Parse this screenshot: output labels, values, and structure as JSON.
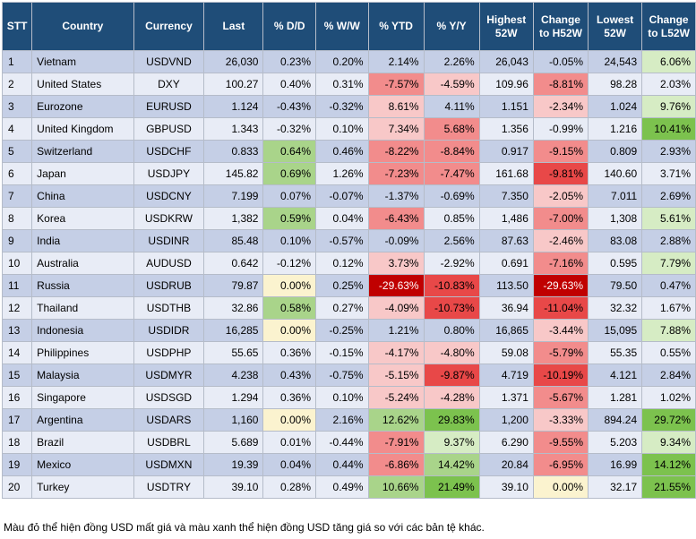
{
  "headers": [
    "STT",
    "Country",
    "Currency",
    "Last",
    "% D/D",
    "% W/W",
    "% YTD",
    "% Y/Y",
    "Highest 52W",
    "Change to H52W",
    "Lowest 52W",
    "Change to L52W"
  ],
  "rows": [
    {
      "stt": "1",
      "country": "Vietnam",
      "currency": "USDVND",
      "last": "26,030",
      "dd": "0.23%",
      "ww": "0.20%",
      "ytd": "2.14%",
      "yy": "2.26%",
      "h52": "26,043",
      "ch52": "-0.05%",
      "l52": "24,543",
      "cl52": "6.06%"
    },
    {
      "stt": "2",
      "country": "United States",
      "currency": "DXY",
      "last": "100.27",
      "dd": "0.40%",
      "ww": "0.31%",
      "ytd": "-7.57%",
      "yy": "-4.59%",
      "h52": "109.96",
      "ch52": "-8.81%",
      "l52": "98.28",
      "cl52": "2.03%"
    },
    {
      "stt": "3",
      "country": "Eurozone",
      "currency": "EURUSD",
      "last": "1.124",
      "dd": "-0.43%",
      "ww": "-0.32%",
      "ytd": "8.61%",
      "yy": "4.11%",
      "h52": "1.151",
      "ch52": "-2.34%",
      "l52": "1.024",
      "cl52": "9.76%"
    },
    {
      "stt": "4",
      "country": "United Kingdom",
      "currency": "GBPUSD",
      "last": "1.343",
      "dd": "-0.32%",
      "ww": "0.10%",
      "ytd": "7.34%",
      "yy": "5.68%",
      "h52": "1.356",
      "ch52": "-0.99%",
      "l52": "1.216",
      "cl52": "10.41%"
    },
    {
      "stt": "5",
      "country": "Switzerland",
      "currency": "USDCHF",
      "last": "0.833",
      "dd": "0.64%",
      "ww": "0.46%",
      "ytd": "-8.22%",
      "yy": "-8.84%",
      "h52": "0.917",
      "ch52": "-9.15%",
      "l52": "0.809",
      "cl52": "2.93%"
    },
    {
      "stt": "6",
      "country": "Japan",
      "currency": "USDJPY",
      "last": "145.82",
      "dd": "0.69%",
      "ww": "1.26%",
      "ytd": "-7.23%",
      "yy": "-7.47%",
      "h52": "161.68",
      "ch52": "-9.81%",
      "l52": "140.60",
      "cl52": "3.71%"
    },
    {
      "stt": "7",
      "country": "China",
      "currency": "USDCNY",
      "last": "7.199",
      "dd": "0.07%",
      "ww": "-0.07%",
      "ytd": "-1.37%",
      "yy": "-0.69%",
      "h52": "7.350",
      "ch52": "-2.05%",
      "l52": "7.011",
      "cl52": "2.69%"
    },
    {
      "stt": "8",
      "country": "Korea",
      "currency": "USDKRW",
      "last": "1,382",
      "dd": "0.59%",
      "ww": "0.04%",
      "ytd": "-6.43%",
      "yy": "0.85%",
      "h52": "1,486",
      "ch52": "-7.00%",
      "l52": "1,308",
      "cl52": "5.61%"
    },
    {
      "stt": "9",
      "country": "India",
      "currency": "USDINR",
      "last": "85.48",
      "dd": "0.10%",
      "ww": "-0.57%",
      "ytd": "-0.09%",
      "yy": "2.56%",
      "h52": "87.63",
      "ch52": "-2.46%",
      "l52": "83.08",
      "cl52": "2.88%"
    },
    {
      "stt": "10",
      "country": "Australia",
      "currency": "AUDUSD",
      "last": "0.642",
      "dd": "-0.12%",
      "ww": "0.12%",
      "ytd": "3.73%",
      "yy": "-2.92%",
      "h52": "0.691",
      "ch52": "-7.16%",
      "l52": "0.595",
      "cl52": "7.79%"
    },
    {
      "stt": "11",
      "country": "Russia",
      "currency": "USDRUB",
      "last": "79.87",
      "dd": "0.00%",
      "ww": "0.25%",
      "ytd": "-29.63%",
      "yy": "-10.83%",
      "h52": "113.50",
      "ch52": "-29.63%",
      "l52": "79.50",
      "cl52": "0.47%"
    },
    {
      "stt": "12",
      "country": "Thailand",
      "currency": "USDTHB",
      "last": "32.86",
      "dd": "0.58%",
      "ww": "0.27%",
      "ytd": "-4.09%",
      "yy": "-10.73%",
      "h52": "36.94",
      "ch52": "-11.04%",
      "l52": "32.32",
      "cl52": "1.67%"
    },
    {
      "stt": "13",
      "country": "Indonesia",
      "currency": "USDIDR",
      "last": "16,285",
      "dd": "0.00%",
      "ww": "-0.25%",
      "ytd": "1.21%",
      "yy": "0.80%",
      "h52": "16,865",
      "ch52": "-3.44%",
      "l52": "15,095",
      "cl52": "7.88%"
    },
    {
      "stt": "14",
      "country": "Philippines",
      "currency": "USDPHP",
      "last": "55.65",
      "dd": "0.36%",
      "ww": "-0.15%",
      "ytd": "-4.17%",
      "yy": "-4.80%",
      "h52": "59.08",
      "ch52": "-5.79%",
      "l52": "55.35",
      "cl52": "0.55%"
    },
    {
      "stt": "15",
      "country": "Malaysia",
      "currency": "USDMYR",
      "last": "4.238",
      "dd": "0.43%",
      "ww": "-0.75%",
      "ytd": "-5.15%",
      "yy": "-9.87%",
      "h52": "4.719",
      "ch52": "-10.19%",
      "l52": "4.121",
      "cl52": "2.84%"
    },
    {
      "stt": "16",
      "country": "Singapore",
      "currency": "USDSGD",
      "last": "1.294",
      "dd": "0.36%",
      "ww": "0.10%",
      "ytd": "-5.24%",
      "yy": "-4.28%",
      "h52": "1.371",
      "ch52": "-5.67%",
      "l52": "1.281",
      "cl52": "1.02%"
    },
    {
      "stt": "17",
      "country": "Argentina",
      "currency": "USDARS",
      "last": "1,160",
      "dd": "0.00%",
      "ww": "2.16%",
      "ytd": "12.62%",
      "yy": "29.83%",
      "h52": "1,200",
      "ch52": "-3.33%",
      "l52": "894.24",
      "cl52": "29.72%"
    },
    {
      "stt": "18",
      "country": "Brazil",
      "currency": "USDBRL",
      "last": "5.689",
      "dd": "0.01%",
      "ww": "-0.44%",
      "ytd": "-7.91%",
      "yy": "9.37%",
      "h52": "6.290",
      "ch52": "-9.55%",
      "l52": "5.203",
      "cl52": "9.34%"
    },
    {
      "stt": "19",
      "country": "Mexico",
      "currency": "USDMXN",
      "last": "19.39",
      "dd": "0.04%",
      "ww": "0.44%",
      "ytd": "-6.86%",
      "yy": "14.42%",
      "h52": "20.84",
      "ch52": "-6.95%",
      "l52": "16.99",
      "cl52": "14.12%"
    },
    {
      "stt": "20",
      "country": "Turkey",
      "currency": "USDTRY",
      "last": "39.10",
      "dd": "0.28%",
      "ww": "0.49%",
      "ytd": "10.66%",
      "yy": "21.49%",
      "h52": "39.10",
      "ch52": "0.00%",
      "l52": "32.17",
      "cl52": "21.55%"
    }
  ],
  "footnote": "Màu đỏ thể hiện đồng USD mất giá và màu xanh thể hiện đồng USD tăng giá so với các bản tệ khác.",
  "colors": {
    "header_bg": "#1f4d78",
    "row_odd": "#c5cfe6",
    "row_even": "#e8ecf6",
    "red_light": "#f8c8c8",
    "red_mid": "#f28c8c",
    "red_strong": "#e84848",
    "red_dark": "#c00000",
    "green_light": "#d6ecc4",
    "green_mid": "#a9d48a",
    "green_strong": "#7cc24e",
    "neutral_light": "#fbf3cf"
  }
}
